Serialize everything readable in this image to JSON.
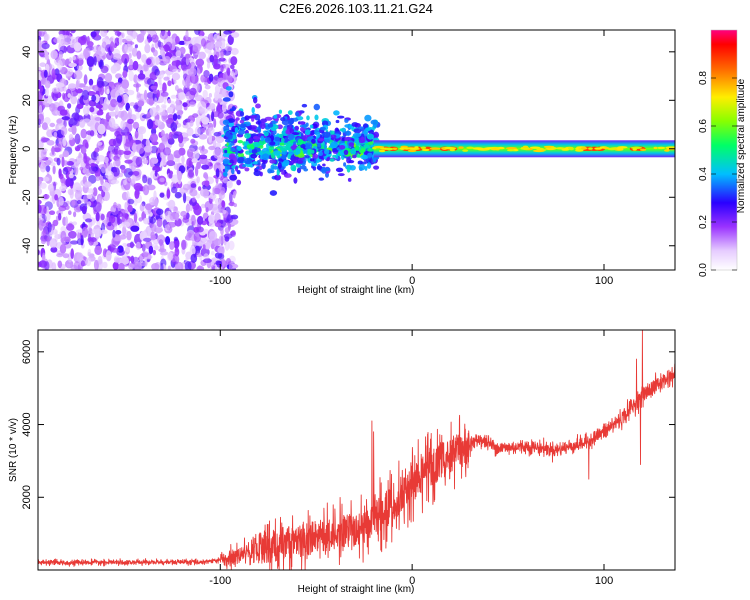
{
  "title": "C2E6.2026.103.11.21.G24",
  "colors": {
    "snr_line": "#e83a36",
    "scatter_base": "#7a2be8",
    "axis": "#000000"
  },
  "chart_data": [
    {
      "type": "heatmap",
      "name": "spectrogram",
      "xlabel": "Height of straight line (km)",
      "ylabel": "Frequency (Hz)",
      "xlim": [
        -195,
        137
      ],
      "ylim": [
        -50,
        49
      ],
      "x_ticks": [
        -100,
        0,
        100
      ],
      "x_tick_labels": [
        "-100",
        "0",
        "100"
      ],
      "y_ticks": [
        -40,
        -20,
        0,
        20,
        40
      ],
      "y_tick_labels": [
        "-40",
        "-20",
        "0",
        "20",
        "40"
      ],
      "noise_region_x": [
        -195,
        -92
      ],
      "signal_band_hz": 0,
      "colorbar": {
        "label": "Normalized spectral amplitude",
        "range": [
          0,
          1
        ],
        "ticks": [
          0.0,
          0.2,
          0.4,
          0.6,
          0.8
        ],
        "tick_labels": [
          "0.0",
          "0.2",
          "0.4",
          "0.6",
          "0.8"
        ]
      }
    },
    {
      "type": "line",
      "name": "snr",
      "xlabel": "Height of straight line (km)",
      "ylabel": "SNR (10 * v/v)",
      "xlim": [
        -195,
        137
      ],
      "ylim": [
        0,
        6600
      ],
      "x_ticks": [
        -100,
        0,
        100
      ],
      "x_tick_labels": [
        "-100",
        "0",
        "100"
      ],
      "y_ticks": [
        2000,
        4000,
        6000
      ],
      "y_tick_labels": [
        "2000",
        "4000",
        "6000"
      ],
      "trend_x": [
        -195,
        -110,
        -95,
        -80,
        -60,
        -40,
        -25,
        -15,
        -5,
        5,
        15,
        25,
        35,
        45,
        60,
        75,
        90,
        100,
        110,
        118,
        125,
        137
      ],
      "trend_y": [
        200,
        220,
        300,
        600,
        800,
        1000,
        1200,
        1600,
        2100,
        2600,
        3000,
        3300,
        3600,
        3350,
        3400,
        3300,
        3500,
        3800,
        4200,
        4700,
        5000,
        5400
      ],
      "spikes": [
        {
          "x": -21,
          "y": 4100
        },
        {
          "x": -20,
          "y": 3800
        },
        {
          "x": 120,
          "y": 6600
        },
        {
          "x": 117,
          "y": 5800
        },
        {
          "x": 119,
          "y": 2900
        },
        {
          "x": 92,
          "y": 2500
        }
      ]
    }
  ]
}
